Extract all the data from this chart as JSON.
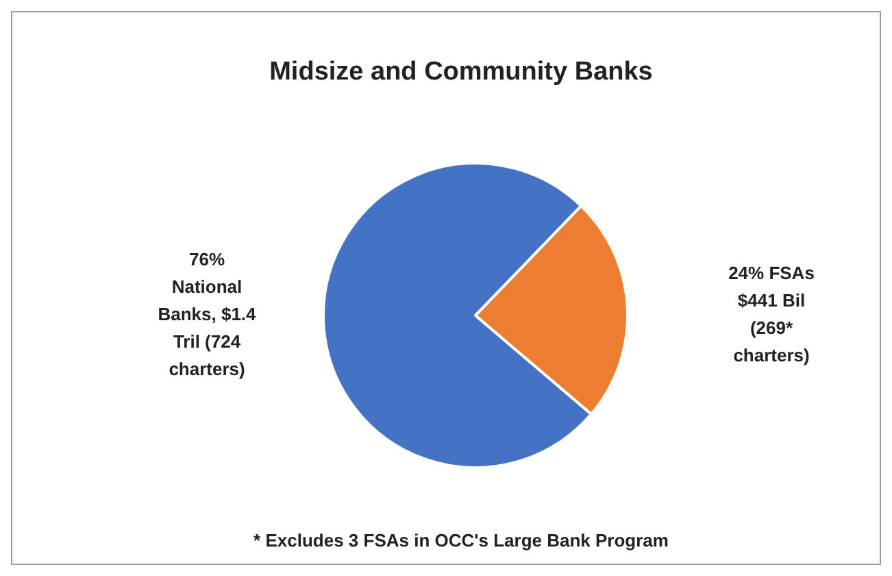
{
  "chart_data": {
    "type": "pie",
    "title": "Midsize and Community Banks",
    "categories": [
      "National Banks, $1.4 Tril (724 charters)",
      "FSAs $441 Bil (269* charters)"
    ],
    "values": [
      76,
      24
    ],
    "value_labels": [
      "76%",
      "24%"
    ],
    "colors": [
      "#4472c4",
      "#ed7d31"
    ],
    "annotations": [
      "* Excludes 3 FSAs in OCC's Large Bank Program"
    ]
  }
}
